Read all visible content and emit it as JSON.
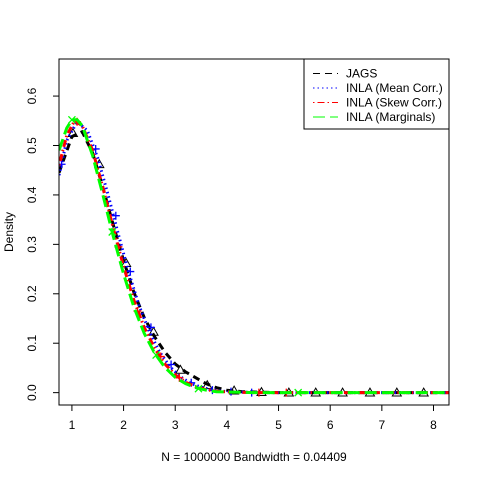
{
  "chart_data": {
    "type": "line",
    "title": "",
    "xlabel": "N = 1000000   Bandwidth = 0.04409",
    "ylabel": "Density",
    "xlim": [
      0.75,
      8.3
    ],
    "ylim": [
      -0.025,
      0.675
    ],
    "xticks": [
      1,
      2,
      3,
      4,
      5,
      6,
      7,
      8
    ],
    "yticks": [
      0.0,
      0.1,
      0.2,
      0.3,
      0.4,
      0.5,
      0.6
    ],
    "legend_position": "top-right",
    "grid": false,
    "series": [
      {
        "name": "JAGS",
        "color": "#000000",
        "line_style": "dashed",
        "marker": "triangle",
        "x": [
          0.75,
          1.0,
          1.2,
          1.4,
          1.6,
          1.8,
          2.0,
          2.2,
          2.4,
          2.6,
          2.8,
          3.0,
          3.2,
          3.4,
          3.6,
          3.8,
          4.0,
          4.3,
          4.6,
          5.0,
          5.5,
          6.0,
          7.0,
          8.3
        ],
        "y": [
          0.445,
          0.518,
          0.528,
          0.485,
          0.415,
          0.34,
          0.267,
          0.203,
          0.152,
          0.113,
          0.082,
          0.058,
          0.042,
          0.03,
          0.018,
          0.01,
          0.005,
          0.002,
          0.001,
          0.0,
          0.0,
          0.0,
          0.0,
          0.0
        ],
        "marker_x": [
          1.02,
          1.53,
          2.05,
          2.58,
          3.1,
          3.62,
          4.14,
          4.67,
          5.2,
          5.72,
          6.24,
          6.77,
          7.29,
          7.81
        ],
        "marker_y": [
          0.525,
          0.462,
          0.262,
          0.123,
          0.046,
          0.015,
          0.004,
          0.001,
          0.0,
          0.0,
          0.0,
          0.0,
          0.0,
          0.0
        ]
      },
      {
        "name": "INLA (Mean Corr.)",
        "color": "#0000ff",
        "line_style": "dotted",
        "marker": "plus",
        "x": [
          0.75,
          0.9,
          1.1,
          1.3,
          1.5,
          1.7,
          1.9,
          2.1,
          2.3,
          2.5,
          2.7,
          2.9,
          3.1,
          3.3,
          3.5,
          3.7,
          4.0,
          4.3,
          4.6,
          5.0,
          6.0,
          7.0,
          8.3
        ],
        "y": [
          0.44,
          0.51,
          0.548,
          0.53,
          0.475,
          0.4,
          0.32,
          0.243,
          0.176,
          0.123,
          0.082,
          0.052,
          0.032,
          0.019,
          0.011,
          0.006,
          0.002,
          0.001,
          0.0,
          0.0,
          0.0,
          0.0,
          0.0
        ],
        "marker_x": [
          0.8,
          1.46,
          1.85,
          2.13,
          2.53,
          2.92,
          3.31,
          3.72,
          4.08,
          4.48
        ],
        "marker_y": [
          0.462,
          0.493,
          0.358,
          0.245,
          0.132,
          0.057,
          0.02,
          0.005,
          0.002,
          0.0
        ]
      },
      {
        "name": "INLA (Skew Corr.)",
        "color": "#ff0000",
        "line_style": "dotdash",
        "marker": "plus",
        "x": [
          0.75,
          0.9,
          1.05,
          1.2,
          1.4,
          1.6,
          1.8,
          2.0,
          2.2,
          2.4,
          2.6,
          2.8,
          3.0,
          3.2,
          3.4,
          3.6,
          3.8,
          4.1,
          4.5,
          5.0,
          6.0,
          7.0,
          8.3
        ],
        "y": [
          0.46,
          0.52,
          0.55,
          0.54,
          0.49,
          0.415,
          0.333,
          0.255,
          0.187,
          0.132,
          0.09,
          0.058,
          0.036,
          0.021,
          0.012,
          0.006,
          0.003,
          0.001,
          0.0,
          0.0,
          0.0,
          0.0,
          0.0
        ],
        "marker_x": [
          1.1,
          1.9,
          2.27,
          2.72,
          3.08,
          4.62,
          5.15
        ],
        "marker_y": [
          0.548,
          0.295,
          0.165,
          0.073,
          0.03,
          0.0,
          0.0
        ]
      },
      {
        "name": "INLA (Marginals)",
        "color": "#00ff00",
        "line_style": "longdash",
        "marker": "x",
        "x": [
          0.75,
          0.9,
          1.0,
          1.1,
          1.2,
          1.4,
          1.6,
          1.8,
          2.0,
          2.2,
          2.4,
          2.6,
          2.8,
          3.0,
          3.2,
          3.4,
          3.6,
          3.8,
          4.1,
          4.5,
          5.0,
          6.0,
          7.0,
          8.3
        ],
        "y": [
          0.49,
          0.535,
          0.552,
          0.552,
          0.54,
          0.48,
          0.4,
          0.317,
          0.24,
          0.173,
          0.12,
          0.08,
          0.051,
          0.031,
          0.018,
          0.01,
          0.005,
          0.002,
          0.001,
          0.0,
          0.0,
          0.0,
          0.0,
          0.0
        ],
        "marker_x": [
          1.0,
          1.78,
          2.63,
          3.45,
          5.38
        ],
        "marker_y": [
          0.552,
          0.325,
          0.076,
          0.008,
          0.0
        ]
      }
    ]
  }
}
